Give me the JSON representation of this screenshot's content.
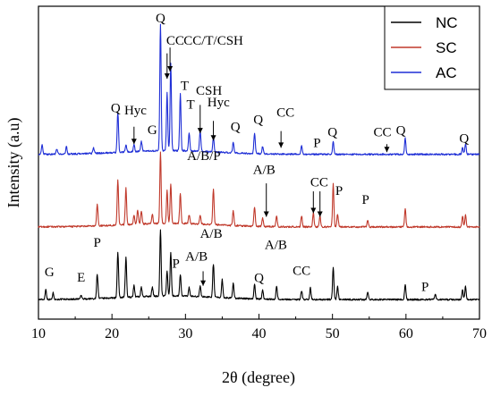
{
  "chart_data": {
    "type": "line",
    "xlabel": "2θ (degree)",
    "ylabel": "Intensity (a.u)",
    "xlim": [
      10,
      70
    ],
    "xticks": [
      "10",
      "20",
      "30",
      "40",
      "50",
      "60",
      "70"
    ],
    "grid": false,
    "legend_position": "top-right",
    "series": [
      {
        "name": "NC",
        "color": "#000000",
        "baseline": 0,
        "peaks": [
          [
            11.0,
            0.14
          ],
          [
            12.0,
            0.09
          ],
          [
            15.8,
            0.05
          ],
          [
            18.0,
            0.34
          ],
          [
            20.8,
            0.62
          ],
          [
            21.9,
            0.55
          ],
          [
            23.0,
            0.16
          ],
          [
            24.0,
            0.13
          ],
          [
            25.5,
            0.12
          ],
          [
            26.6,
            0.92
          ],
          [
            27.5,
            0.35
          ],
          [
            28.0,
            0.6
          ],
          [
            29.3,
            0.3
          ],
          [
            30.5,
            0.12
          ],
          [
            32.0,
            0.14
          ],
          [
            33.8,
            0.46
          ],
          [
            35.0,
            0.25
          ],
          [
            36.5,
            0.2
          ],
          [
            39.4,
            0.2
          ],
          [
            40.5,
            0.12
          ],
          [
            42.4,
            0.18
          ],
          [
            45.8,
            0.12
          ],
          [
            47.0,
            0.16
          ],
          [
            50.1,
            0.44
          ],
          [
            50.7,
            0.18
          ],
          [
            54.8,
            0.1
          ],
          [
            59.9,
            0.21
          ],
          [
            64.0,
            0.08
          ],
          [
            67.7,
            0.14
          ],
          [
            68.1,
            0.18
          ]
        ]
      },
      {
        "name": "SC",
        "color": "#c0392b",
        "baseline": 1,
        "peaks": [
          [
            18.0,
            0.3
          ],
          [
            20.8,
            0.62
          ],
          [
            21.9,
            0.5
          ],
          [
            23.0,
            0.12
          ],
          [
            23.5,
            0.2
          ],
          [
            24.0,
            0.18
          ],
          [
            25.5,
            0.12
          ],
          [
            26.6,
            0.98
          ],
          [
            27.5,
            0.45
          ],
          [
            28.0,
            0.55
          ],
          [
            29.3,
            0.42
          ],
          [
            30.5,
            0.12
          ],
          [
            32.0,
            0.12
          ],
          [
            33.8,
            0.48
          ],
          [
            36.5,
            0.2
          ],
          [
            39.4,
            0.27
          ],
          [
            40.5,
            0.12
          ],
          [
            42.4,
            0.15
          ],
          [
            45.8,
            0.15
          ],
          [
            47.4,
            0.2
          ],
          [
            48.3,
            0.15
          ],
          [
            50.1,
            0.6
          ],
          [
            50.7,
            0.18
          ],
          [
            54.8,
            0.1
          ],
          [
            59.9,
            0.26
          ],
          [
            67.7,
            0.15
          ],
          [
            68.1,
            0.17
          ]
        ]
      },
      {
        "name": "AC",
        "color": "#1f2fd6",
        "baseline": 2,
        "peaks": [
          [
            10.5,
            0.13
          ],
          [
            12.5,
            0.07
          ],
          [
            13.8,
            0.1
          ],
          [
            17.5,
            0.08
          ],
          [
            20.8,
            0.55
          ],
          [
            21.9,
            0.1
          ],
          [
            23.0,
            0.1
          ],
          [
            24.0,
            0.14
          ],
          [
            26.6,
            1.75
          ],
          [
            27.5,
            0.8
          ],
          [
            28.0,
            1.2
          ],
          [
            29.3,
            0.78
          ],
          [
            30.5,
            0.25
          ],
          [
            32.0,
            0.28
          ],
          [
            33.8,
            0.2
          ],
          [
            36.5,
            0.14
          ],
          [
            39.4,
            0.28
          ],
          [
            40.5,
            0.1
          ],
          [
            45.8,
            0.12
          ],
          [
            50.1,
            0.18
          ],
          [
            59.9,
            0.22
          ],
          [
            67.7,
            0.1
          ],
          [
            68.1,
            0.15
          ]
        ]
      }
    ],
    "annotations": [
      {
        "text": "Q",
        "x": 26.6,
        "y": 3.88
      },
      {
        "text": "CC",
        "x": 28.6,
        "y": 3.57
      },
      {
        "text": "CC/T/CSH",
        "x": 33.8,
        "y": 3.57
      },
      {
        "text": "T",
        "x": 29.9,
        "y": 2.95
      },
      {
        "text": "CSH",
        "x": 33.2,
        "y": 2.88
      },
      {
        "text": "T",
        "x": 30.7,
        "y": 2.69
      },
      {
        "text": "Hyc",
        "x": 34.5,
        "y": 2.72
      },
      {
        "text": "Q",
        "x": 20.5,
        "y": 2.64
      },
      {
        "text": "Hyc",
        "x": 23.2,
        "y": 2.61
      },
      {
        "text": "G",
        "x": 25.5,
        "y": 2.34
      },
      {
        "text": "Q",
        "x": 36.8,
        "y": 2.38
      },
      {
        "text": "Q",
        "x": 39.9,
        "y": 2.48
      },
      {
        "text": "CC",
        "x": 43.6,
        "y": 2.58
      },
      {
        "text": "Q",
        "x": 50.0,
        "y": 2.31
      },
      {
        "text": "CC",
        "x": 56.8,
        "y": 2.31
      },
      {
        "text": "Q",
        "x": 59.3,
        "y": 2.33
      },
      {
        "text": "Q",
        "x": 67.9,
        "y": 2.22
      },
      {
        "text": "P",
        "x": 47.9,
        "y": 2.16
      },
      {
        "text": "A/B/P",
        "x": 32.5,
        "y": 1.98
      },
      {
        "text": "A/B",
        "x": 40.7,
        "y": 1.79
      },
      {
        "text": "CC",
        "x": 48.2,
        "y": 1.62
      },
      {
        "text": "P",
        "x": 50.9,
        "y": 1.5
      },
      {
        "text": "P",
        "x": 54.5,
        "y": 1.38
      },
      {
        "text": "G",
        "x": 11.5,
        "y": 0.38
      },
      {
        "text": "E",
        "x": 15.8,
        "y": 0.31
      },
      {
        "text": "P",
        "x": 18.0,
        "y": 0.79
      },
      {
        "text": "P",
        "x": 28.7,
        "y": 0.5
      },
      {
        "text": "A/B",
        "x": 31.5,
        "y": 0.6
      },
      {
        "text": "A/B",
        "x": 33.5,
        "y": 0.91
      },
      {
        "text": "A/B",
        "x": 42.3,
        "y": 0.76
      },
      {
        "text": "Q",
        "x": 40.0,
        "y": 0.3
      },
      {
        "text": "CC",
        "x": 45.8,
        "y": 0.4
      },
      {
        "text": "P",
        "x": 62.6,
        "y": 0.18
      }
    ],
    "arrows": [
      {
        "x": 27.5,
        "y1": 3.45,
        "y2": 3.1
      },
      {
        "x": 27.9,
        "y1": 3.53,
        "y2": 3.2
      },
      {
        "x": 23.0,
        "y1": 2.44,
        "y2": 2.2
      },
      {
        "x": 32.0,
        "y1": 2.74,
        "y2": 2.35
      },
      {
        "x": 33.8,
        "y1": 2.52,
        "y2": 2.25
      },
      {
        "x": 43.0,
        "y1": 2.38,
        "y2": 2.15
      },
      {
        "x": 57.4,
        "y1": 2.2,
        "y2": 2.09
      },
      {
        "x": 41.0,
        "y1": 1.66,
        "y2": 1.2
      },
      {
        "x": 47.4,
        "y1": 1.55,
        "y2": 1.25
      },
      {
        "x": 48.3,
        "y1": 1.55,
        "y2": 1.2
      },
      {
        "x": 32.4,
        "y1": 0.45,
        "y2": 0.25
      }
    ]
  }
}
